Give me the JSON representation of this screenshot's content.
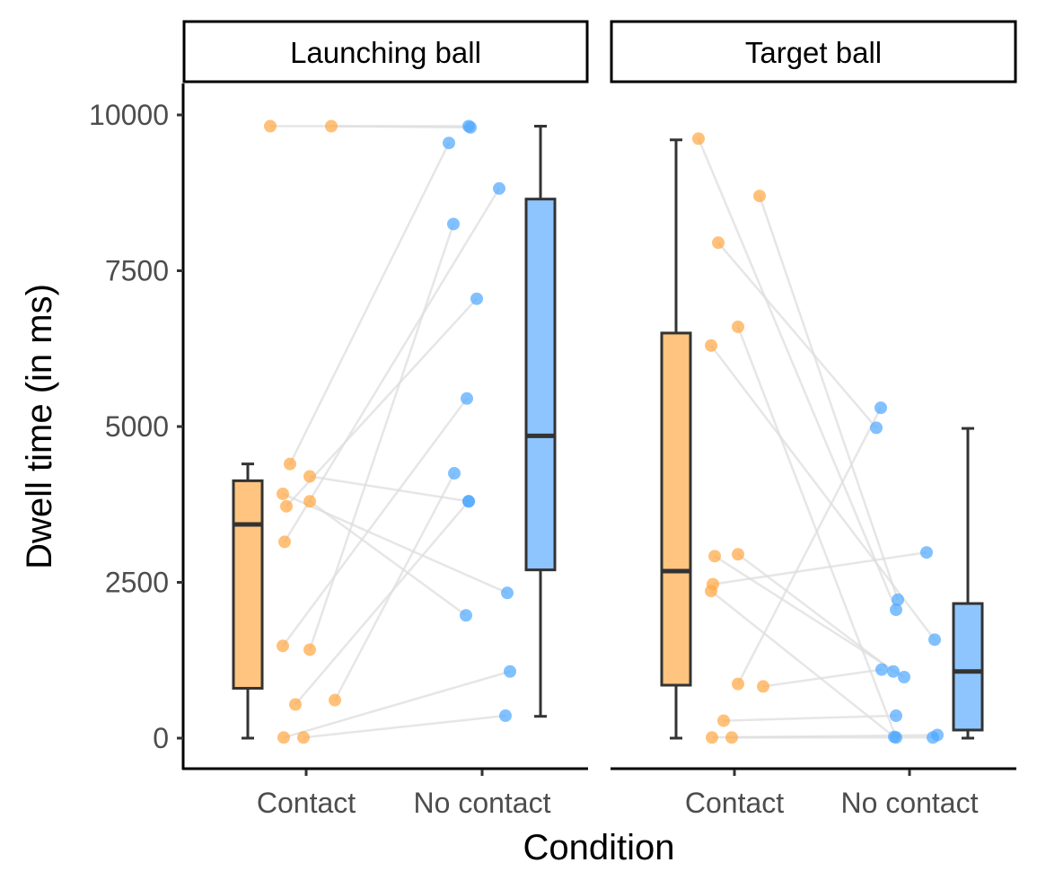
{
  "colors": {
    "contact": "#ffc47f",
    "no_contact": "#8ec5ff",
    "contact_point": "#ffa640",
    "no_contact_point": "#4da6ff",
    "pair_line": "#dedede",
    "box_stroke": "#333333"
  },
  "chart_data": {
    "type": "boxplot",
    "ylabel": "Dwell time (in ms)",
    "xlabel": "Condition",
    "ylim": [
      -500,
      10500
    ],
    "yticks": [
      0,
      2500,
      5000,
      7500,
      10000
    ],
    "categories": [
      "Contact",
      "No contact"
    ],
    "facets": [
      {
        "title": "Launching ball",
        "boxes": [
          {
            "category": "Contact",
            "whisker_low": 0,
            "q1": 800,
            "median": 3430,
            "q3": 4130,
            "whisker_high": 4400
          },
          {
            "category": "No contact",
            "whisker_low": 350,
            "q1": 2700,
            "median": 4850,
            "q3": 8650,
            "whisker_high": 9820
          }
        ],
        "pairs": [
          {
            "contact": 9820,
            "no_contact": 9820
          },
          {
            "contact": 9820,
            "no_contact": 9800
          },
          {
            "contact": 4400,
            "no_contact": 9550
          },
          {
            "contact": 4200,
            "no_contact": 3800
          },
          {
            "contact": 3920,
            "no_contact": 2330
          },
          {
            "contact": 3800,
            "no_contact": 1970
          },
          {
            "contact": 3720,
            "no_contact": 7050
          },
          {
            "contact": 3150,
            "no_contact": 8820
          },
          {
            "contact": 1480,
            "no_contact": 5450
          },
          {
            "contact": 1420,
            "no_contact": 8250
          },
          {
            "contact": 610,
            "no_contact": 4250
          },
          {
            "contact": 540,
            "no_contact": 3800
          },
          {
            "contact": 10,
            "no_contact": 1070
          },
          {
            "contact": 10,
            "no_contact": 360
          }
        ]
      },
      {
        "title": "Target ball",
        "boxes": [
          {
            "category": "Contact",
            "whisker_low": 0,
            "q1": 850,
            "median": 2680,
            "q3": 6500,
            "whisker_high": 9600
          },
          {
            "category": "No contact",
            "whisker_low": 0,
            "q1": 130,
            "median": 1070,
            "q3": 2160,
            "whisker_high": 4970
          }
        ],
        "pairs": [
          {
            "contact": 9620,
            "no_contact": 2060
          },
          {
            "contact": 8700,
            "no_contact": 2220
          },
          {
            "contact": 7950,
            "no_contact": 4980
          },
          {
            "contact": 6600,
            "no_contact": 10
          },
          {
            "contact": 6300,
            "no_contact": 1580
          },
          {
            "contact": 2950,
            "no_contact": 1070
          },
          {
            "contact": 2920,
            "no_contact": 980
          },
          {
            "contact": 2470,
            "no_contact": 2980
          },
          {
            "contact": 2360,
            "no_contact": 20
          },
          {
            "contact": 870,
            "no_contact": 5300
          },
          {
            "contact": 830,
            "no_contact": 1100
          },
          {
            "contact": 280,
            "no_contact": 360
          },
          {
            "contact": 10,
            "no_contact": 50
          },
          {
            "contact": 10,
            "no_contact": 10
          }
        ]
      }
    ]
  }
}
